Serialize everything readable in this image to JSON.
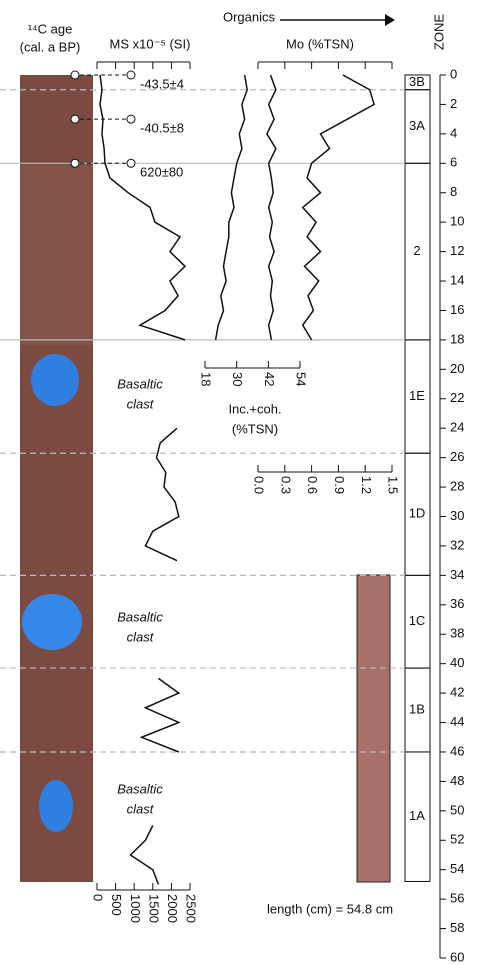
{
  "age_header": [
    "¹⁴C age",
    "(cal. a BP)"
  ],
  "organics_label": "Organics",
  "zone_label": "ZONE",
  "length_note": "length (cm) = 54.8 cm",
  "clast_labels": [
    [
      "Basaltic",
      "clast"
    ],
    [
      "Basaltic",
      "clast"
    ],
    [
      "Basaltic",
      "clast"
    ]
  ],
  "ages": [
    {
      "depth": 0,
      "label": "-43.5±4"
    },
    {
      "depth": 3,
      "label": "-40.5±8"
    },
    {
      "depth": 6,
      "label": "620±80"
    }
  ],
  "zones": [
    {
      "label": "3B",
      "top": 0,
      "bottom": 1,
      "top_line": "none"
    },
    {
      "label": "3A",
      "top": 1,
      "bottom": 6,
      "top_line": "dashed"
    },
    {
      "label": "2",
      "top": 6,
      "bottom": 18,
      "top_line": "solid"
    },
    {
      "label": "1E",
      "top": 18,
      "bottom": 25.7,
      "top_line": "solid"
    },
    {
      "label": "1D",
      "top": 25.7,
      "bottom": 34,
      "top_line": "dashed"
    },
    {
      "label": "1C",
      "top": 34,
      "bottom": 40.3,
      "top_line": "dashed"
    },
    {
      "label": "1B",
      "top": 40.3,
      "bottom": 46,
      "top_line": "dashed"
    },
    {
      "label": "1A",
      "top": 46,
      "bottom": 54.8,
      "top_line": "dashed"
    }
  ],
  "depth_axis": {
    "ylim": [
      0,
      60
    ],
    "yticks": [
      0,
      2,
      4,
      6,
      8,
      10,
      12,
      14,
      16,
      18,
      20,
      22,
      24,
      26,
      28,
      30,
      32,
      34,
      36,
      38,
      40,
      42,
      44,
      46,
      48,
      50,
      52,
      54,
      56,
      58,
      60
    ]
  },
  "chart_data": [
    {
      "type": "line",
      "xlabel": "MS x10⁻⁵ (SI)",
      "xlim": [
        0,
        2500
      ],
      "xticks": [
        0,
        500,
        1000,
        1500,
        2000,
        2500
      ],
      "series": [
        {
          "color": "#111",
          "depths": [
            0,
            1,
            2,
            3,
            4,
            5,
            6,
            7,
            8,
            9,
            10,
            11,
            12,
            13,
            14,
            15,
            16,
            17,
            18
          ],
          "values": [
            80,
            135,
            80,
            160,
            135,
            190,
            215,
            350,
            835,
            1425,
            1560,
            2230,
            1960,
            2365,
            1960,
            2180,
            1830,
            1155,
            2365
          ]
        },
        {
          "color": "#111",
          "depths": [
            24,
            25,
            26,
            27,
            28,
            29,
            30,
            31,
            32,
            33
          ],
          "values": [
            2150,
            1700,
            1600,
            1850,
            1800,
            2100,
            2200,
            1500,
            1300,
            2150
          ]
        },
        {
          "color": "#111",
          "depths": [
            41,
            42,
            43,
            44,
            45,
            46
          ],
          "values": [
            1650,
            2200,
            1300,
            2200,
            1200,
            2200
          ]
        },
        {
          "color": "#111",
          "depths": [
            51,
            52,
            53,
            54,
            55
          ],
          "values": [
            1500,
            1300,
            900,
            1500,
            1650
          ]
        }
      ]
    },
    {
      "type": "line",
      "xlabel_lines": [
        "Inc.+coh.",
        "(%TSN)"
      ],
      "xlim": [
        18,
        54
      ],
      "xticks": [
        18,
        30,
        42,
        54
      ],
      "series": [
        {
          "color": "#111",
          "depths": [
            0,
            1,
            2,
            3,
            4,
            5,
            6,
            7,
            8,
            9,
            10,
            11,
            12,
            13,
            14,
            15,
            16,
            17,
            18
          ],
          "values": [
            33,
            34,
            32,
            33,
            31,
            32,
            30,
            29,
            28,
            29,
            27,
            27,
            26,
            25,
            26,
            24,
            25,
            23,
            22
          ]
        }
      ]
    },
    {
      "type": "line",
      "xlabel": "Mo (%TSN)",
      "xlim": [
        0,
        1.5
      ],
      "xticks": [
        {
          "value": 0,
          "label": "0.0"
        },
        {
          "value": 0.3,
          "label": "0.3"
        },
        {
          "value": 0.6,
          "label": "0.6"
        },
        {
          "value": 0.9,
          "label": "0.9"
        },
        {
          "value": 1.2,
          "label": "1.2"
        },
        {
          "value": 1.5,
          "label": "1.5"
        }
      ],
      "series": [
        {
          "color": "#111",
          "depths": [
            0,
            1,
            2,
            3,
            4,
            5,
            6,
            7,
            8,
            9,
            10,
            11,
            12,
            13,
            14,
            15,
            16,
            17,
            18
          ],
          "values": [
            0.14,
            0.2,
            0.12,
            0.18,
            0.1,
            0.2,
            0.12,
            0.15,
            0.17,
            0.12,
            0.16,
            0.13,
            0.18,
            0.12,
            0.16,
            0.14,
            0.17,
            0.12,
            0.15
          ]
        },
        {
          "color": "#111",
          "depths": [
            0,
            1,
            2,
            3,
            4,
            5,
            6,
            7,
            8,
            9,
            10,
            11,
            12,
            13,
            14,
            15,
            16,
            17,
            18
          ],
          "values": [
            0.95,
            1.25,
            1.3,
            1.0,
            0.7,
            0.8,
            0.6,
            0.55,
            0.7,
            0.5,
            0.65,
            0.55,
            0.7,
            0.52,
            0.68,
            0.56,
            0.62,
            0.5,
            0.6
          ]
        }
      ]
    }
  ]
}
